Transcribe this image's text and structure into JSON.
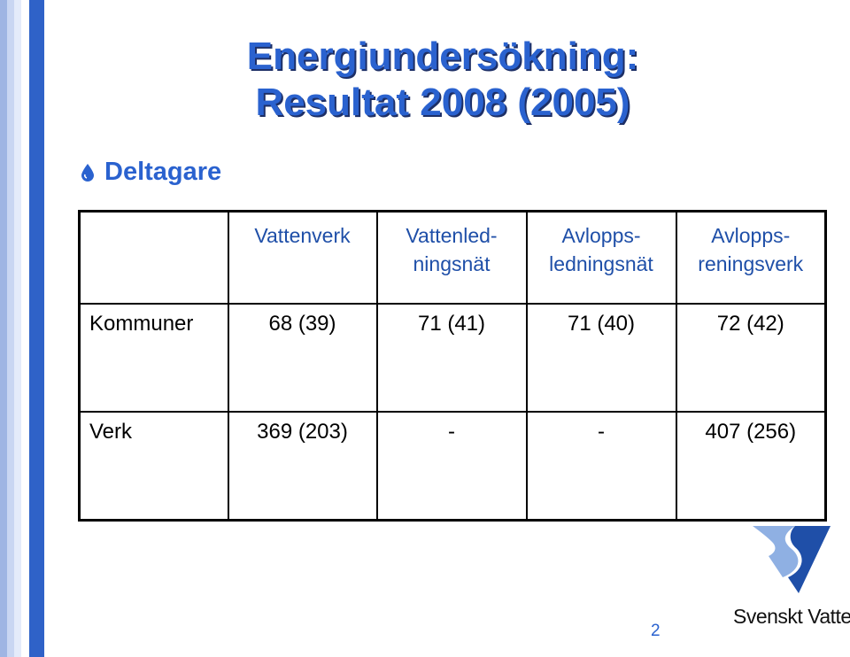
{
  "slide": {
    "title_line1": "Energiundersökning:",
    "title_line2": "Resultat 2008 (2005)",
    "bullet": "Deltagare",
    "page_number": "2"
  },
  "table": {
    "headers": [
      "",
      "Vattenverk",
      "Vattenled-\nningsnät",
      "Avlopps-\nledningsnät",
      "Avlopps-\nreningsverk"
    ],
    "rows": [
      {
        "label": "Kommuner",
        "values": [
          "68 (39)",
          "71 (41)",
          "71 (40)",
          "72 (42)"
        ]
      },
      {
        "label": "Verk",
        "values": [
          "369 (203)",
          "-",
          "-",
          "407 (256)"
        ]
      }
    ]
  },
  "logo": {
    "text": "Svenskt Vatten",
    "icon": "svenskt-vatten-logo-mark"
  },
  "colors": {
    "title": "#2a62cf",
    "accent_stripe": "#2f62c8",
    "header_text": "#1f4fa8"
  }
}
